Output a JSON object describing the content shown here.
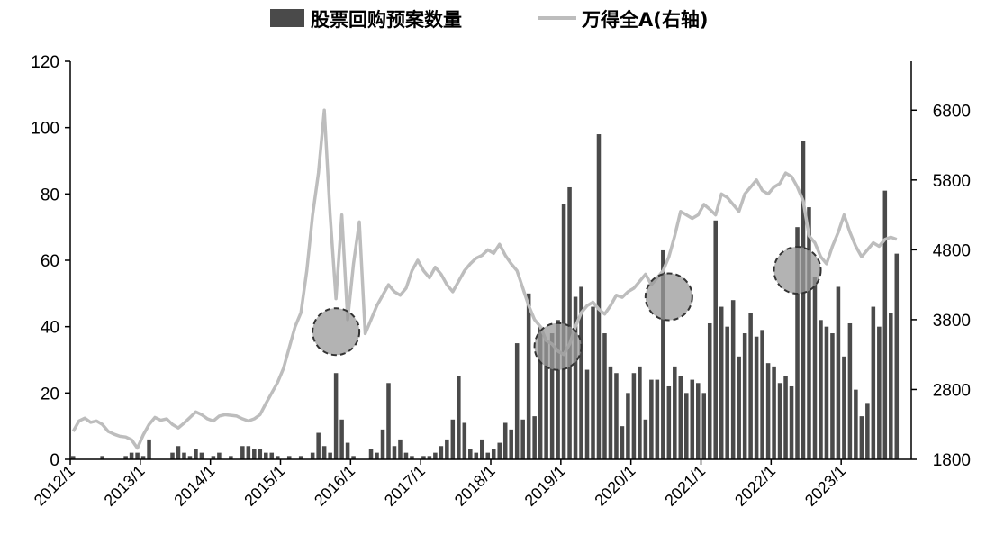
{
  "chart_data": {
    "type": "bar+line",
    "legend": {
      "bar_label": "股票回购预案数量",
      "line_label": "万得全A(右轴)",
      "placement": "top"
    },
    "colors": {
      "bars": "#4a4a4a",
      "line": "#bdbdbd",
      "highlight_fill": "#9a9a9a",
      "highlight_stroke": "#333333"
    },
    "y_left": {
      "min": 0,
      "max": 120,
      "ticks": [
        "0",
        "20",
        "40",
        "60",
        "80",
        "100",
        "120"
      ]
    },
    "y_right": {
      "min": 1800,
      "max": 7500,
      "ticks": [
        "1800",
        "2800",
        "3800",
        "4800",
        "5800",
        "6800"
      ]
    },
    "x_start": "2012-01",
    "x_ticks": [
      "2012/1",
      "2013/1",
      "2014/1",
      "2015/1",
      "2016/1",
      "2017/1",
      "2018/1",
      "2019/1",
      "2020/1",
      "2021/1",
      "2022/1",
      "2023/1"
    ],
    "bars": [
      {
        "month": "2012-01",
        "value": 1
      },
      {
        "month": "2012-02",
        "value": 0
      },
      {
        "month": "2012-03",
        "value": 0
      },
      {
        "month": "2012-04",
        "value": 0
      },
      {
        "month": "2012-05",
        "value": 0
      },
      {
        "month": "2012-06",
        "value": 1
      },
      {
        "month": "2012-07",
        "value": 0
      },
      {
        "month": "2012-08",
        "value": 0
      },
      {
        "month": "2012-09",
        "value": 0
      },
      {
        "month": "2012-10",
        "value": 1
      },
      {
        "month": "2012-11",
        "value": 2
      },
      {
        "month": "2012-12",
        "value": 2
      },
      {
        "month": "2013-01",
        "value": 1
      },
      {
        "month": "2013-02",
        "value": 6
      },
      {
        "month": "2013-03",
        "value": 0
      },
      {
        "month": "2013-04",
        "value": 0
      },
      {
        "month": "2013-05",
        "value": 0
      },
      {
        "month": "2013-06",
        "value": 2
      },
      {
        "month": "2013-07",
        "value": 4
      },
      {
        "month": "2013-08",
        "value": 2
      },
      {
        "month": "2013-09",
        "value": 1
      },
      {
        "month": "2013-10",
        "value": 3
      },
      {
        "month": "2013-11",
        "value": 2
      },
      {
        "month": "2013-12",
        "value": 0
      },
      {
        "month": "2014-01",
        "value": 1
      },
      {
        "month": "2014-02",
        "value": 2
      },
      {
        "month": "2014-03",
        "value": 0
      },
      {
        "month": "2014-04",
        "value": 1
      },
      {
        "month": "2014-05",
        "value": 0
      },
      {
        "month": "2014-06",
        "value": 4
      },
      {
        "month": "2014-07",
        "value": 4
      },
      {
        "month": "2014-08",
        "value": 3
      },
      {
        "month": "2014-09",
        "value": 3
      },
      {
        "month": "2014-10",
        "value": 2
      },
      {
        "month": "2014-11",
        "value": 2
      },
      {
        "month": "2014-12",
        "value": 1
      },
      {
        "month": "2015-01",
        "value": 0
      },
      {
        "month": "2015-02",
        "value": 1
      },
      {
        "month": "2015-03",
        "value": 0
      },
      {
        "month": "2015-04",
        "value": 1
      },
      {
        "month": "2015-05",
        "value": 0
      },
      {
        "month": "2015-06",
        "value": 2
      },
      {
        "month": "2015-07",
        "value": 8
      },
      {
        "month": "2015-08",
        "value": 4
      },
      {
        "month": "2015-09",
        "value": 2
      },
      {
        "month": "2015-10",
        "value": 26
      },
      {
        "month": "2015-11",
        "value": 12
      },
      {
        "month": "2015-12",
        "value": 5
      },
      {
        "month": "2016-01",
        "value": 1
      },
      {
        "month": "2016-02",
        "value": 0
      },
      {
        "month": "2016-03",
        "value": 0
      },
      {
        "month": "2016-04",
        "value": 3
      },
      {
        "month": "2016-05",
        "value": 2
      },
      {
        "month": "2016-06",
        "value": 9
      },
      {
        "month": "2016-07",
        "value": 23
      },
      {
        "month": "2016-08",
        "value": 4
      },
      {
        "month": "2016-09",
        "value": 6
      },
      {
        "month": "2016-10",
        "value": 2
      },
      {
        "month": "2016-11",
        "value": 1
      },
      {
        "month": "2016-12",
        "value": 0
      },
      {
        "month": "2017-01",
        "value": 1
      },
      {
        "month": "2017-02",
        "value": 1
      },
      {
        "month": "2017-03",
        "value": 2
      },
      {
        "month": "2017-04",
        "value": 4
      },
      {
        "month": "2017-05",
        "value": 6
      },
      {
        "month": "2017-06",
        "value": 12
      },
      {
        "month": "2017-07",
        "value": 25
      },
      {
        "month": "2017-08",
        "value": 11
      },
      {
        "month": "2017-09",
        "value": 3
      },
      {
        "month": "2017-10",
        "value": 2
      },
      {
        "month": "2017-11",
        "value": 6
      },
      {
        "month": "2017-12",
        "value": 2
      },
      {
        "month": "2018-01",
        "value": 3
      },
      {
        "month": "2018-02",
        "value": 5
      },
      {
        "month": "2018-03",
        "value": 11
      },
      {
        "month": "2018-04",
        "value": 9
      },
      {
        "month": "2018-05",
        "value": 35
      },
      {
        "month": "2018-06",
        "value": 12
      },
      {
        "month": "2018-07",
        "value": 50
      },
      {
        "month": "2018-08",
        "value": 13
      },
      {
        "month": "2018-09",
        "value": 40
      },
      {
        "month": "2018-10",
        "value": 36
      },
      {
        "month": "2018-11",
        "value": 38
      },
      {
        "month": "2018-12",
        "value": 42
      },
      {
        "month": "2019-01",
        "value": 77
      },
      {
        "month": "2019-02",
        "value": 82
      },
      {
        "month": "2019-03",
        "value": 49
      },
      {
        "month": "2019-04",
        "value": 52
      },
      {
        "month": "2019-05",
        "value": 27
      },
      {
        "month": "2019-06",
        "value": 46
      },
      {
        "month": "2019-07",
        "value": 98
      },
      {
        "month": "2019-08",
        "value": 38
      },
      {
        "month": "2019-09",
        "value": 28
      },
      {
        "month": "2019-10",
        "value": 26
      },
      {
        "month": "2019-11",
        "value": 10
      },
      {
        "month": "2019-12",
        "value": 20
      },
      {
        "month": "2020-01",
        "value": 26
      },
      {
        "month": "2020-02",
        "value": 28
      },
      {
        "month": "2020-03",
        "value": 12
      },
      {
        "month": "2020-04",
        "value": 24
      },
      {
        "month": "2020-05",
        "value": 24
      },
      {
        "month": "2020-06",
        "value": 63
      },
      {
        "month": "2020-07",
        "value": 22
      },
      {
        "month": "2020-08",
        "value": 28
      },
      {
        "month": "2020-09",
        "value": 25
      },
      {
        "month": "2020-10",
        "value": 20
      },
      {
        "month": "2020-11",
        "value": 24
      },
      {
        "month": "2020-12",
        "value": 23
      },
      {
        "month": "2021-01",
        "value": 20
      },
      {
        "month": "2021-02",
        "value": 41
      },
      {
        "month": "2021-03",
        "value": 72
      },
      {
        "month": "2021-04",
        "value": 46
      },
      {
        "month": "2021-05",
        "value": 40
      },
      {
        "month": "2021-06",
        "value": 48
      },
      {
        "month": "2021-07",
        "value": 31
      },
      {
        "month": "2021-08",
        "value": 38
      },
      {
        "month": "2021-09",
        "value": 44
      },
      {
        "month": "2021-10",
        "value": 37
      },
      {
        "month": "2021-11",
        "value": 39
      },
      {
        "month": "2021-12",
        "value": 29
      },
      {
        "month": "2022-01",
        "value": 28
      },
      {
        "month": "2022-02",
        "value": 23
      },
      {
        "month": "2022-03",
        "value": 25
      },
      {
        "month": "2022-04",
        "value": 22
      },
      {
        "month": "2022-05",
        "value": 70
      },
      {
        "month": "2022-06",
        "value": 96
      },
      {
        "month": "2022-07",
        "value": 76
      },
      {
        "month": "2022-08",
        "value": 55
      },
      {
        "month": "2022-09",
        "value": 42
      },
      {
        "month": "2022-10",
        "value": 40
      },
      {
        "month": "2022-11",
        "value": 38
      },
      {
        "month": "2022-12",
        "value": 52
      },
      {
        "month": "2023-01",
        "value": 31
      },
      {
        "month": "2023-02",
        "value": 41
      },
      {
        "month": "2023-03",
        "value": 21
      },
      {
        "month": "2023-04",
        "value": 13
      },
      {
        "month": "2023-05",
        "value": 17
      },
      {
        "month": "2023-06",
        "value": 46
      },
      {
        "month": "2023-07",
        "value": 40
      },
      {
        "month": "2023-08",
        "value": 81
      },
      {
        "month": "2023-09",
        "value": 44
      },
      {
        "month": "2023-10",
        "value": 62
      }
    ],
    "line": [
      {
        "month": "2012-01",
        "value": 2200
      },
      {
        "month": "2012-02",
        "value": 2350
      },
      {
        "month": "2012-03",
        "value": 2390
      },
      {
        "month": "2012-04",
        "value": 2330
      },
      {
        "month": "2012-05",
        "value": 2350
      },
      {
        "month": "2012-06",
        "value": 2300
      },
      {
        "month": "2012-07",
        "value": 2200
      },
      {
        "month": "2012-08",
        "value": 2160
      },
      {
        "month": "2012-09",
        "value": 2130
      },
      {
        "month": "2012-10",
        "value": 2120
      },
      {
        "month": "2012-11",
        "value": 2080
      },
      {
        "month": "2012-12",
        "value": 1960
      },
      {
        "month": "2013-01",
        "value": 2150
      },
      {
        "month": "2013-02",
        "value": 2300
      },
      {
        "month": "2013-03",
        "value": 2400
      },
      {
        "month": "2013-04",
        "value": 2360
      },
      {
        "month": "2013-05",
        "value": 2380
      },
      {
        "month": "2013-06",
        "value": 2300
      },
      {
        "month": "2013-07",
        "value": 2250
      },
      {
        "month": "2013-08",
        "value": 2320
      },
      {
        "month": "2013-09",
        "value": 2400
      },
      {
        "month": "2013-10",
        "value": 2480
      },
      {
        "month": "2013-11",
        "value": 2440
      },
      {
        "month": "2013-12",
        "value": 2380
      },
      {
        "month": "2014-01",
        "value": 2350
      },
      {
        "month": "2014-02",
        "value": 2420
      },
      {
        "month": "2014-03",
        "value": 2440
      },
      {
        "month": "2014-04",
        "value": 2430
      },
      {
        "month": "2014-05",
        "value": 2420
      },
      {
        "month": "2014-06",
        "value": 2380
      },
      {
        "month": "2014-07",
        "value": 2350
      },
      {
        "month": "2014-08",
        "value": 2380
      },
      {
        "month": "2014-09",
        "value": 2440
      },
      {
        "month": "2014-10",
        "value": 2600
      },
      {
        "month": "2014-11",
        "value": 2750
      },
      {
        "month": "2014-12",
        "value": 2900
      },
      {
        "month": "2015-01",
        "value": 3100
      },
      {
        "month": "2015-02",
        "value": 3400
      },
      {
        "month": "2015-03",
        "value": 3700
      },
      {
        "month": "2015-04",
        "value": 3900
      },
      {
        "month": "2015-05",
        "value": 4500
      },
      {
        "month": "2015-06",
        "value": 5300
      },
      {
        "month": "2015-07",
        "value": 5900
      },
      {
        "month": "2015-08",
        "value": 6800
      },
      {
        "month": "2015-09",
        "value": 5300
      },
      {
        "month": "2015-10",
        "value": 4100
      },
      {
        "month": "2015-11",
        "value": 5300
      },
      {
        "month": "2015-12",
        "value": 3800
      },
      {
        "month": "2016-01",
        "value": 4600
      },
      {
        "month": "2016-02",
        "value": 5200
      },
      {
        "month": "2016-03",
        "value": 3600
      },
      {
        "month": "2016-04",
        "value": 3800
      },
      {
        "month": "2016-05",
        "value": 4000
      },
      {
        "month": "2016-06",
        "value": 4150
      },
      {
        "month": "2016-07",
        "value": 4300
      },
      {
        "month": "2016-08",
        "value": 4200
      },
      {
        "month": "2016-09",
        "value": 4150
      },
      {
        "month": "2016-10",
        "value": 4250
      },
      {
        "month": "2016-11",
        "value": 4500
      },
      {
        "month": "2016-12",
        "value": 4650
      },
      {
        "month": "2017-01",
        "value": 4500
      },
      {
        "month": "2017-02",
        "value": 4400
      },
      {
        "month": "2017-03",
        "value": 4550
      },
      {
        "month": "2017-04",
        "value": 4450
      },
      {
        "month": "2017-05",
        "value": 4300
      },
      {
        "month": "2017-06",
        "value": 4200
      },
      {
        "month": "2017-07",
        "value": 4350
      },
      {
        "month": "2017-08",
        "value": 4500
      },
      {
        "month": "2017-09",
        "value": 4600
      },
      {
        "month": "2017-10",
        "value": 4680
      },
      {
        "month": "2017-11",
        "value": 4720
      },
      {
        "month": "2017-12",
        "value": 4800
      },
      {
        "month": "2018-01",
        "value": 4750
      },
      {
        "month": "2018-02",
        "value": 4880
      },
      {
        "month": "2018-03",
        "value": 4720
      },
      {
        "month": "2018-04",
        "value": 4600
      },
      {
        "month": "2018-05",
        "value": 4500
      },
      {
        "month": "2018-06",
        "value": 4250
      },
      {
        "month": "2018-07",
        "value": 4000
      },
      {
        "month": "2018-08",
        "value": 3800
      },
      {
        "month": "2018-09",
        "value": 3700
      },
      {
        "month": "2018-10",
        "value": 3500
      },
      {
        "month": "2018-11",
        "value": 3450
      },
      {
        "month": "2018-12",
        "value": 3350
      },
      {
        "month": "2019-01",
        "value": 3300
      },
      {
        "month": "2019-02",
        "value": 3450
      },
      {
        "month": "2019-03",
        "value": 3700
      },
      {
        "month": "2019-04",
        "value": 3900
      },
      {
        "month": "2019-05",
        "value": 4000
      },
      {
        "month": "2019-06",
        "value": 4050
      },
      {
        "month": "2019-07",
        "value": 3950
      },
      {
        "month": "2019-08",
        "value": 3880
      },
      {
        "month": "2019-09",
        "value": 4000
      },
      {
        "month": "2019-10",
        "value": 4150
      },
      {
        "month": "2019-11",
        "value": 4120
      },
      {
        "month": "2019-12",
        "value": 4200
      },
      {
        "month": "2020-01",
        "value": 4250
      },
      {
        "month": "2020-02",
        "value": 4350
      },
      {
        "month": "2020-03",
        "value": 4450
      },
      {
        "month": "2020-04",
        "value": 4300
      },
      {
        "month": "2020-05",
        "value": 4400
      },
      {
        "month": "2020-06",
        "value": 4500
      },
      {
        "month": "2020-07",
        "value": 4700
      },
      {
        "month": "2020-08",
        "value": 5000
      },
      {
        "month": "2020-09",
        "value": 5350
      },
      {
        "month": "2020-10",
        "value": 5300
      },
      {
        "month": "2020-11",
        "value": 5250
      },
      {
        "month": "2020-12",
        "value": 5300
      },
      {
        "month": "2021-01",
        "value": 5450
      },
      {
        "month": "2021-02",
        "value": 5380
      },
      {
        "month": "2021-03",
        "value": 5300
      },
      {
        "month": "2021-04",
        "value": 5600
      },
      {
        "month": "2021-05",
        "value": 5550
      },
      {
        "month": "2021-06",
        "value": 5450
      },
      {
        "month": "2021-07",
        "value": 5350
      },
      {
        "month": "2021-08",
        "value": 5600
      },
      {
        "month": "2021-09",
        "value": 5700
      },
      {
        "month": "2021-10",
        "value": 5800
      },
      {
        "month": "2021-11",
        "value": 5650
      },
      {
        "month": "2021-12",
        "value": 5600
      },
      {
        "month": "2022-01",
        "value": 5700
      },
      {
        "month": "2022-02",
        "value": 5750
      },
      {
        "month": "2022-03",
        "value": 5900
      },
      {
        "month": "2022-04",
        "value": 5850
      },
      {
        "month": "2022-05",
        "value": 5700
      },
      {
        "month": "2022-06",
        "value": 5500
      },
      {
        "month": "2022-07",
        "value": 5000
      },
      {
        "month": "2022-08",
        "value": 4900
      },
      {
        "month": "2022-09",
        "value": 4700
      },
      {
        "month": "2022-10",
        "value": 4600
      },
      {
        "month": "2022-11",
        "value": 4850
      },
      {
        "month": "2022-12",
        "value": 5050
      },
      {
        "month": "2023-01",
        "value": 5300
      },
      {
        "month": "2023-02",
        "value": 5050
      },
      {
        "month": "2023-03",
        "value": 4850
      },
      {
        "month": "2023-04",
        "value": 4700
      },
      {
        "month": "2023-05",
        "value": 4800
      },
      {
        "month": "2023-06",
        "value": 4900
      },
      {
        "month": "2023-07",
        "value": 4850
      },
      {
        "month": "2023-08",
        "value": 4950
      },
      {
        "month": "2023-09",
        "value": 4980
      },
      {
        "month": "2023-10",
        "value": 4950
      }
    ],
    "highlights": [
      {
        "month": "2015-10",
        "y_left": 38.5
      },
      {
        "month": "2018-12",
        "y_left": 34
      },
      {
        "month": "2020-07",
        "y_left": 49
      },
      {
        "month": "2022-05",
        "y_left": 57
      }
    ]
  }
}
